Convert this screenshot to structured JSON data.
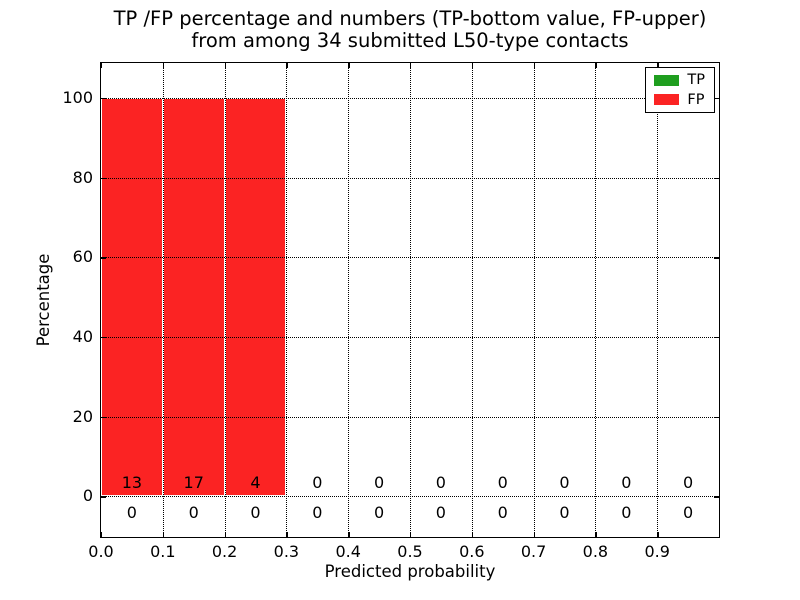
{
  "chart_data": {
    "type": "bar",
    "title_line1": "TP /FP percentage and numbers (TP-bottom value, FP-upper)",
    "title_line2": "from among 34 submitted L50-type contacts",
    "xlabel": "Predicted probability",
    "ylabel": "Percentage",
    "xlim": [
      0.0,
      1.0
    ],
    "ylim": [
      -10.25,
      108.75
    ],
    "x_tick_values": [
      0.0,
      0.1,
      0.2,
      0.3,
      0.4,
      0.5,
      0.6,
      0.7,
      0.8,
      0.9
    ],
    "x_tick_labels": [
      "0.0",
      "0.1",
      "0.2",
      "0.3",
      "0.4",
      "0.5",
      "0.6",
      "0.7",
      "0.8",
      "0.9"
    ],
    "y_tick_values": [
      0,
      20,
      40,
      60,
      80,
      100
    ],
    "y_tick_labels": [
      "0",
      "20",
      "40",
      "60",
      "80",
      "100"
    ],
    "grid": true,
    "grid_style": "dotted",
    "bin_width": 0.1,
    "bin_starts": [
      0.0,
      0.1,
      0.2,
      0.3,
      0.4,
      0.5,
      0.6,
      0.7,
      0.8,
      0.9
    ],
    "series": [
      {
        "name": "TP",
        "color": "#1f9e1f",
        "count_row": "bottom",
        "percentages": [
          0,
          0,
          0,
          0,
          0,
          0,
          0,
          0,
          0,
          0
        ],
        "counts": [
          0,
          0,
          0,
          0,
          0,
          0,
          0,
          0,
          0,
          0
        ]
      },
      {
        "name": "FP",
        "color": "#fb2323",
        "count_row": "upper",
        "percentages": [
          100,
          100,
          100,
          0,
          0,
          0,
          0,
          0,
          0,
          0
        ],
        "counts": [
          13,
          17,
          4,
          0,
          0,
          0,
          0,
          0,
          0,
          0
        ]
      }
    ],
    "legend": {
      "position": "upper right",
      "entries": [
        {
          "label": "TP",
          "color": "#1f9e1f"
        },
        {
          "label": "FP",
          "color": "#fb2323"
        }
      ]
    }
  }
}
